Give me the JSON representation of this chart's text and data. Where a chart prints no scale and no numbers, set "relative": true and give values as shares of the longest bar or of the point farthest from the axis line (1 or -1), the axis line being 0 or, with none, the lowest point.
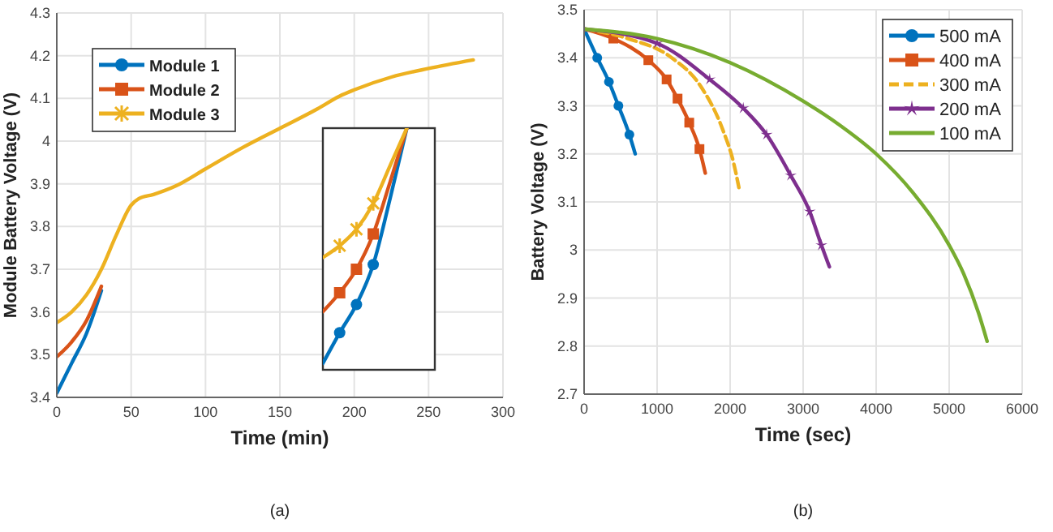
{
  "chart_data": [
    {
      "type": "line",
      "xlabel": "Time (min)",
      "ylabel": "Module Battery Voltage (V)",
      "xlim": [
        0,
        300
      ],
      "ylim": [
        3.4,
        4.3
      ],
      "xticks": [
        0,
        50,
        100,
        150,
        200,
        250,
        300
      ],
      "yticks": [
        3.4,
        3.5,
        3.6,
        3.7,
        3.8,
        3.9,
        4,
        4.1,
        4.2,
        4.3
      ],
      "grid": true,
      "legend": "top left",
      "annotations": [
        "(a)"
      ],
      "x": [
        0,
        10,
        20,
        30,
        40,
        50,
        55,
        65,
        80,
        100,
        125,
        150,
        175,
        190,
        200,
        225,
        250,
        280
      ],
      "series": [
        {
          "name": "Module 1",
          "color": "#0072bd",
          "values": [
            3.41,
            3.48,
            3.55,
            3.65,
            null,
            null,
            null,
            null,
            null,
            null,
            null,
            null,
            null,
            null,
            null,
            null,
            null,
            null
          ]
        },
        {
          "name": "Module 2",
          "color": "#d95319",
          "values": [
            3.495,
            3.53,
            3.58,
            3.66,
            null,
            null,
            null,
            null,
            null,
            null,
            null,
            null,
            null,
            null,
            null,
            null,
            null,
            null
          ]
        },
        {
          "name": "Module 3",
          "color": "#edb120",
          "values": [
            3.575,
            3.6,
            3.64,
            3.7,
            3.78,
            3.85,
            3.865,
            3.875,
            3.895,
            3.935,
            3.985,
            4.03,
            4.075,
            4.105,
            4.12,
            4.15,
            4.17,
            4.19
          ]
        }
      ]
    },
    {
      "type": "line",
      "xlabel": "Time (sec)",
      "ylabel": "Battery Voltage (V)",
      "xlim": [
        0,
        6000
      ],
      "ylim": [
        2.7,
        3.5
      ],
      "xticks": [
        0,
        1000,
        2000,
        3000,
        4000,
        5000,
        6000
      ],
      "yticks": [
        2.7,
        2.8,
        2.9,
        3,
        3.1,
        3.2,
        3.3,
        3.4,
        3.5
      ],
      "grid": true,
      "legend": "top right",
      "annotations": [
        "(b)"
      ],
      "series": [
        {
          "name": "500 mA",
          "color": "#0072bd",
          "marker": "circle",
          "x": [
            0,
            180,
            340,
            470,
            620,
            700
          ],
          "values": [
            3.46,
            3.4,
            3.35,
            3.3,
            3.24,
            3.2
          ]
        },
        {
          "name": "400 mA",
          "color": "#d95319",
          "marker": "square",
          "x": [
            0,
            400,
            880,
            1130,
            1280,
            1440,
            1580,
            1660
          ],
          "values": [
            3.46,
            3.44,
            3.395,
            3.355,
            3.315,
            3.265,
            3.21,
            3.16
          ]
        },
        {
          "name": "300 mA",
          "color": "#edb120",
          "marker": "none",
          "line_style": "dashed",
          "x": [
            0,
            600,
            1200,
            1600,
            1900,
            2050,
            2120
          ],
          "values": [
            3.46,
            3.44,
            3.4,
            3.34,
            3.25,
            3.18,
            3.13
          ]
        },
        {
          "name": "200 mA",
          "color": "#7e2f8e",
          "marker": "star",
          "x": [
            0,
            1000,
            1720,
            2180,
            2500,
            2830,
            3090,
            3250,
            3360
          ],
          "values": [
            3.46,
            3.43,
            3.355,
            3.295,
            3.24,
            3.155,
            3.08,
            3.01,
            2.965
          ]
        },
        {
          "name": "100 mA",
          "color": "#77ac30",
          "marker": "none",
          "x": [
            0,
            1000,
            2000,
            3000,
            3500,
            4000,
            4500,
            5000,
            5200,
            5400,
            5520
          ],
          "values": [
            3.46,
            3.44,
            3.39,
            3.31,
            3.26,
            3.2,
            3.12,
            3.01,
            2.95,
            2.87,
            2.81
          ]
        }
      ]
    },
    {
      "type": "line",
      "relative": true,
      "categories": [
        null,
        null,
        null,
        null,
        null,
        null
      ],
      "series": [
        {
          "color": "#0072bd",
          "marker": "circle",
          "values": [
            0,
            0.13,
            0.25,
            0.42,
            0.7,
            1
          ]
        },
        {
          "color": "#d95319",
          "marker": "square",
          "values": [
            0.22,
            0.3,
            0.4,
            0.55,
            0.77,
            1
          ]
        },
        {
          "color": "#edb120",
          "marker": "cross",
          "values": [
            0.45,
            0.5,
            0.57,
            0.68,
            0.84,
            1
          ]
        }
      ]
    }
  ]
}
